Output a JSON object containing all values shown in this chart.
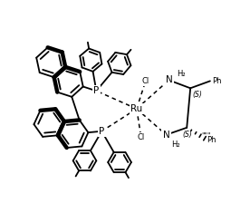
{
  "bg_color": "#ffffff",
  "line_color": "#000000",
  "lw": 1.3,
  "lw_bold": 3.2,
  "figsize": [
    2.76,
    2.46
  ],
  "dpi": 100,
  "ru_label": "Ru",
  "p1_label": "P",
  "p2_label": "P",
  "cl1_label": "Cl",
  "cl2_label": "Cl",
  "n1_label": "N",
  "n2_label": "N",
  "h2_1_label": "H₂",
  "h2_2_label": "H₂",
  "s1_label": "(S)",
  "s2_label": "(S)",
  "ph1_label": "Ph",
  "ph2_label": "Ph"
}
